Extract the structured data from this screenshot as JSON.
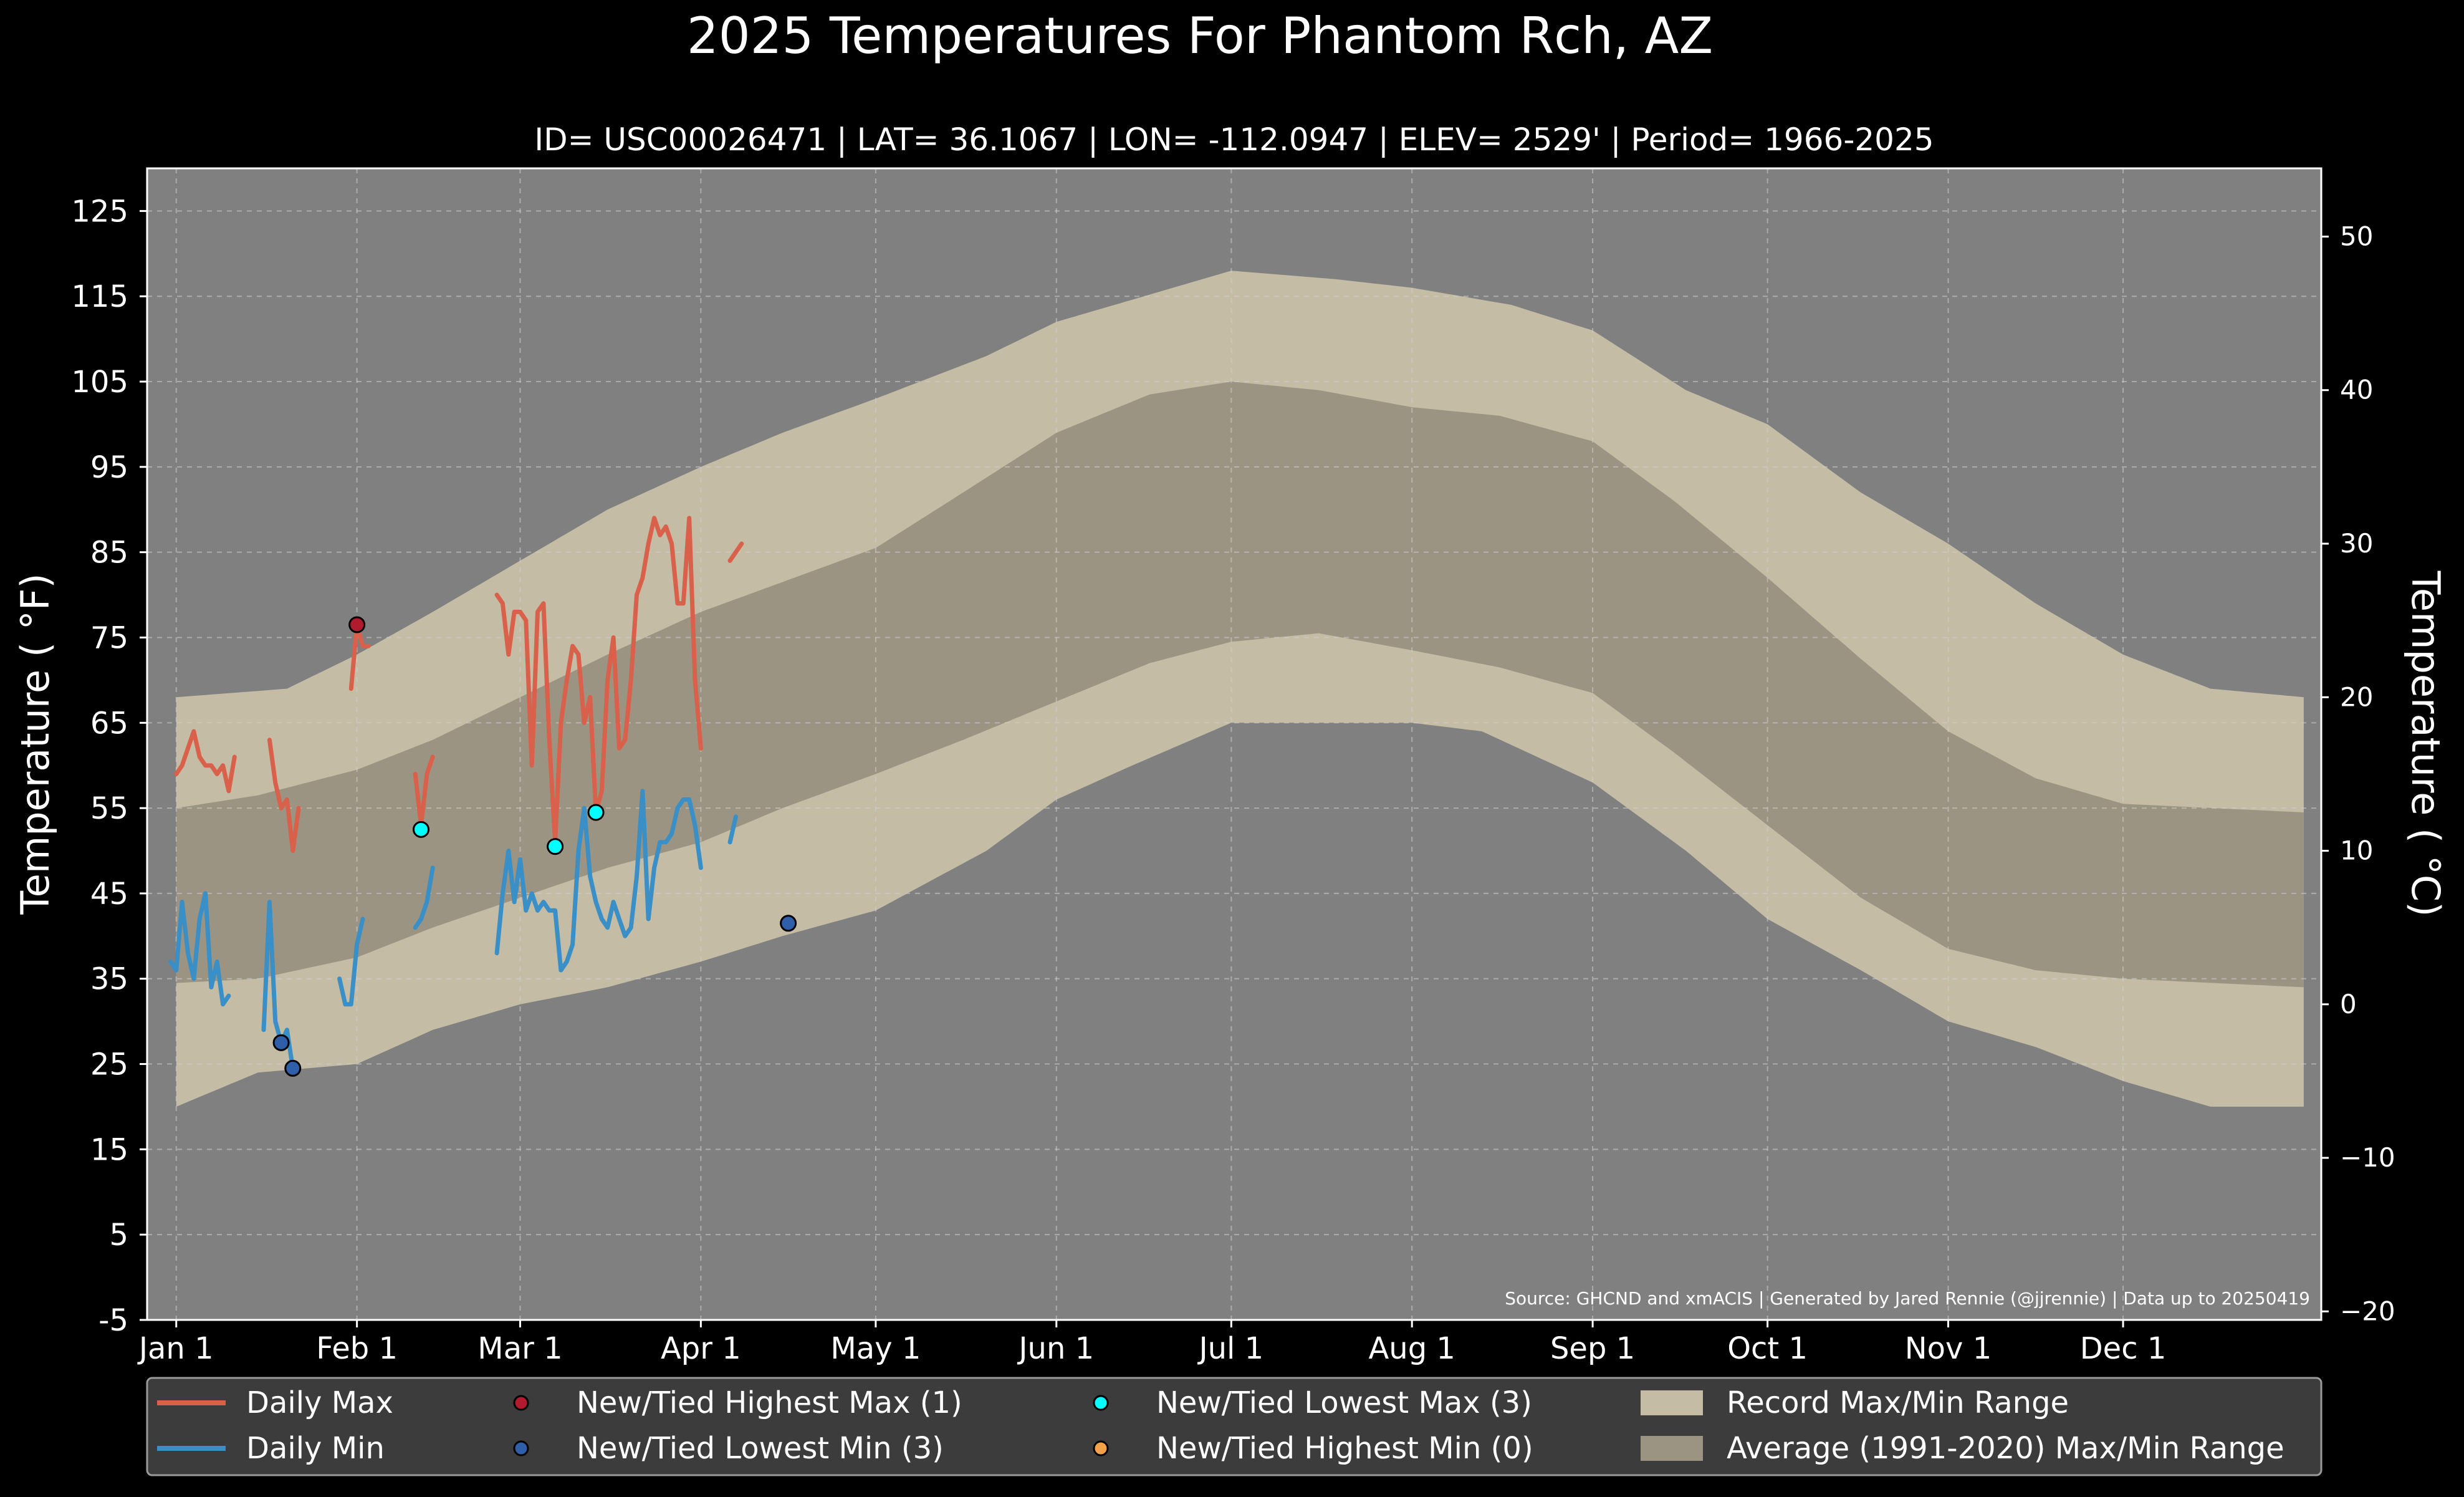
{
  "chart_data": {
    "type": "line",
    "title": "2025 Temperatures For Phantom Rch, AZ",
    "subtitle": "ID= USC00026471 | LAT= 36.1067 | LON= -112.0947 | ELEV= 2529' | Period= 1966-2025",
    "ylabel_left": "Temperature ( °F)",
    "ylabel_right": "Temperature ( °C)",
    "source": "Source: GHCND and xmACIS | Generated by Jared Rennie (@jjrennie) | Data up to 20250419",
    "x_ticks": [
      {
        "label": "Jan 1",
        "day": 1
      },
      {
        "label": "Feb 1",
        "day": 32
      },
      {
        "label": "Mar 1",
        "day": 60
      },
      {
        "label": "Apr 1",
        "day": 91
      },
      {
        "label": "May 1",
        "day": 121
      },
      {
        "label": "Jun 1",
        "day": 152
      },
      {
        "label": "Jul 1",
        "day": 182
      },
      {
        "label": "Aug 1",
        "day": 213
      },
      {
        "label": "Sep 1",
        "day": 244
      },
      {
        "label": "Oct 1",
        "day": 274
      },
      {
        "label": "Nov 1",
        "day": 305
      },
      {
        "label": "Dec 1",
        "day": 335
      }
    ],
    "x_range": [
      -4,
      369
    ],
    "y_range_f": [
      -5,
      130
    ],
    "y_ticks_f": [
      "125",
      "115",
      "105",
      "95",
      "85",
      "75",
      "65",
      "55",
      "45",
      "35",
      "25",
      "15",
      "5",
      "-5"
    ],
    "y_ticks_c": [
      "50",
      "40",
      "30",
      "20",
      "10",
      "0",
      "−10",
      "−20"
    ],
    "grid": true,
    "colors": {
      "background": "#000000",
      "plot_bg": "#808080",
      "record_band": "#c4bca4",
      "normal_band": "#9c9482",
      "daily_max": "#d9604a",
      "daily_min": "#3a8fc6",
      "highest_max": "#b01c2e",
      "lowest_min": "#2f5fa8",
      "lowest_max": "#00ffff",
      "highest_min": "#f4a14a"
    },
    "record_max_points": [
      [
        1,
        68
      ],
      [
        20,
        69
      ],
      [
        32,
        73
      ],
      [
        45,
        78
      ],
      [
        60,
        84
      ],
      [
        75,
        90
      ],
      [
        91,
        95
      ],
      [
        105,
        99
      ],
      [
        121,
        103
      ],
      [
        140,
        108
      ],
      [
        152,
        112
      ],
      [
        182,
        118
      ],
      [
        200,
        117
      ],
      [
        213,
        116
      ],
      [
        230,
        114
      ],
      [
        244,
        111
      ],
      [
        260,
        104
      ],
      [
        274,
        100
      ],
      [
        290,
        92
      ],
      [
        305,
        86
      ],
      [
        320,
        79
      ],
      [
        335,
        73
      ],
      [
        350,
        69
      ],
      [
        366,
        68
      ]
    ],
    "record_min_points": [
      [
        1,
        20
      ],
      [
        15,
        24
      ],
      [
        32,
        25
      ],
      [
        45,
        29
      ],
      [
        60,
        32
      ],
      [
        75,
        34
      ],
      [
        91,
        37
      ],
      [
        105,
        40
      ],
      [
        121,
        43
      ],
      [
        140,
        50
      ],
      [
        152,
        56
      ],
      [
        165,
        60
      ],
      [
        182,
        65
      ],
      [
        200,
        65
      ],
      [
        213,
        65
      ],
      [
        225,
        64
      ],
      [
        244,
        58
      ],
      [
        260,
        50
      ],
      [
        274,
        42
      ],
      [
        290,
        36
      ],
      [
        305,
        30
      ],
      [
        320,
        27
      ],
      [
        335,
        23
      ],
      [
        350,
        20
      ],
      [
        366,
        20
      ]
    ],
    "normal_max_points": [
      [
        1,
        55
      ],
      [
        15,
        56.5
      ],
      [
        32,
        59.5
      ],
      [
        45,
        63
      ],
      [
        60,
        68
      ],
      [
        75,
        73
      ],
      [
        91,
        78
      ],
      [
        105,
        81.5
      ],
      [
        121,
        85.5
      ],
      [
        136,
        92
      ],
      [
        152,
        99
      ],
      [
        168,
        103.5
      ],
      [
        182,
        105
      ],
      [
        197,
        104
      ],
      [
        213,
        102
      ],
      [
        228,
        101
      ],
      [
        244,
        98
      ],
      [
        258,
        91
      ],
      [
        274,
        82
      ],
      [
        290,
        72.5
      ],
      [
        305,
        64
      ],
      [
        320,
        58.5
      ],
      [
        335,
        55.5
      ],
      [
        366,
        54.5
      ]
    ],
    "normal_min_points": [
      [
        1,
        34.5
      ],
      [
        15,
        35
      ],
      [
        32,
        37.5
      ],
      [
        45,
        41
      ],
      [
        60,
        44.5
      ],
      [
        75,
        48
      ],
      [
        91,
        51
      ],
      [
        105,
        55
      ],
      [
        121,
        59
      ],
      [
        136,
        63
      ],
      [
        152,
        67.5
      ],
      [
        168,
        72
      ],
      [
        182,
        74.5
      ],
      [
        197,
        75.5
      ],
      [
        213,
        73.5
      ],
      [
        228,
        71.5
      ],
      [
        244,
        68.5
      ],
      [
        258,
        61.5
      ],
      [
        274,
        53
      ],
      [
        290,
        44.5
      ],
      [
        305,
        38.5
      ],
      [
        320,
        36
      ],
      [
        335,
        35
      ],
      [
        366,
        34
      ]
    ],
    "series": [
      {
        "name": "Daily Max",
        "segments": [
          [
            [
              1,
              59
            ],
            [
              2,
              60
            ],
            [
              3,
              62
            ],
            [
              4,
              64
            ],
            [
              5,
              61
            ],
            [
              6,
              60
            ],
            [
              7,
              60
            ],
            [
              8,
              59
            ],
            [
              9,
              60
            ],
            [
              10,
              57
            ],
            [
              11,
              61
            ]
          ],
          [
            [
              17,
              63
            ],
            [
              18,
              58
            ],
            [
              19,
              55
            ],
            [
              20,
              56
            ],
            [
              21,
              50
            ],
            [
              22,
              55
            ]
          ],
          [
            [
              31,
              69
            ],
            [
              32,
              76.5
            ],
            [
              33,
              74
            ],
            [
              34,
              74
            ]
          ],
          [
            [
              42,
              59
            ],
            [
              43,
              53
            ],
            [
              44,
              59
            ],
            [
              45,
              61
            ]
          ],
          [
            [
              56,
              80
            ],
            [
              57,
              79
            ],
            [
              58,
              73
            ],
            [
              59,
              78
            ],
            [
              60,
              78
            ],
            [
              61,
              77
            ],
            [
              62,
              60
            ],
            [
              63,
              78
            ],
            [
              64,
              79
            ],
            [
              65,
              63
            ],
            [
              66,
              51
            ],
            [
              67,
              65
            ],
            [
              68,
              70
            ],
            [
              69,
              74
            ],
            [
              70,
              73
            ],
            [
              71,
              65
            ],
            [
              72,
              68
            ],
            [
              73,
              54.5
            ],
            [
              74,
              57
            ],
            [
              75,
              70
            ],
            [
              76,
              75
            ],
            [
              77,
              62
            ],
            [
              78,
              63
            ],
            [
              79,
              70
            ],
            [
              80,
              80
            ],
            [
              81,
              82
            ],
            [
              82,
              86
            ],
            [
              83,
              89
            ],
            [
              84,
              87
            ],
            [
              85,
              88
            ],
            [
              86,
              86
            ],
            [
              87,
              79
            ],
            [
              88,
              79
            ],
            [
              89,
              89
            ],
            [
              90,
              70
            ],
            [
              91,
              62
            ]
          ],
          [
            [
              96,
              84
            ],
            [
              98,
              86
            ]
          ]
        ]
      },
      {
        "name": "Daily Min",
        "segments": [
          [
            [
              0,
              37
            ],
            [
              1,
              36
            ],
            [
              2,
              44
            ],
            [
              3,
              38
            ],
            [
              4,
              35
            ],
            [
              5,
              42
            ],
            [
              6,
              45
            ],
            [
              7,
              34
            ],
            [
              8,
              37
            ],
            [
              9,
              32
            ],
            [
              10,
              33
            ]
          ],
          [
            [
              16,
              29
            ],
            [
              17,
              44
            ],
            [
              18,
              30
            ],
            [
              19,
              27.5
            ],
            [
              20,
              29
            ],
            [
              21,
              24.5
            ]
          ],
          [
            [
              29,
              35
            ],
            [
              30,
              32
            ],
            [
              31,
              32
            ],
            [
              32,
              39
            ],
            [
              33,
              42
            ]
          ],
          [
            [
              42,
              41
            ],
            [
              43,
              42
            ],
            [
              44,
              44
            ],
            [
              45,
              48
            ]
          ],
          [
            [
              56,
              38
            ],
            [
              57,
              45
            ],
            [
              58,
              50
            ],
            [
              59,
              44
            ],
            [
              60,
              49
            ],
            [
              61,
              43
            ],
            [
              62,
              45
            ],
            [
              63,
              43
            ],
            [
              64,
              44
            ],
            [
              65,
              43
            ],
            [
              66,
              43
            ],
            [
              67,
              36
            ],
            [
              68,
              37
            ],
            [
              69,
              39
            ],
            [
              70,
              50
            ],
            [
              71,
              55
            ],
            [
              72,
              47
            ],
            [
              73,
              44
            ],
            [
              74,
              42
            ],
            [
              75,
              41
            ],
            [
              76,
              44
            ],
            [
              77,
              42
            ],
            [
              78,
              40
            ],
            [
              79,
              41
            ],
            [
              80,
              47
            ],
            [
              81,
              57
            ],
            [
              82,
              42
            ],
            [
              83,
              48
            ],
            [
              84,
              51
            ],
            [
              85,
              51
            ],
            [
              86,
              52
            ],
            [
              87,
              55
            ],
            [
              88,
              56
            ],
            [
              89,
              56
            ],
            [
              90,
              53
            ],
            [
              91,
              48
            ]
          ],
          [
            [
              96,
              51
            ],
            [
              97,
              54
            ]
          ]
        ]
      }
    ],
    "markers": [
      {
        "label": "New/Tied Highest Max (1)",
        "color_key": "highest_max",
        "points": [
          [
            32,
            76.5
          ]
        ]
      },
      {
        "label": "New/Tied Lowest Min (3)",
        "color_key": "lowest_min",
        "points": [
          [
            19,
            27.5
          ],
          [
            21,
            24.5
          ],
          [
            106,
            41.5
          ]
        ]
      },
      {
        "label": "New/Tied Lowest Max (3)",
        "color_key": "lowest_max",
        "points": [
          [
            43,
            52.5
          ],
          [
            66,
            50.5
          ],
          [
            73,
            54.5
          ]
        ]
      },
      {
        "label": "New/Tied Highest Min (0)",
        "color_key": "highest_min",
        "points": []
      }
    ],
    "legend": {
      "position": "bottom",
      "lines": [
        {
          "label": "Daily Max",
          "color_key": "daily_max"
        },
        {
          "label": "Daily Min",
          "color_key": "daily_min"
        }
      ],
      "patches": [
        {
          "label": "Record Max/Min Range",
          "color_key": "record_band"
        },
        {
          "label": "Average (1991-2020) Max/Min Range",
          "color_key": "normal_band"
        }
      ]
    }
  }
}
